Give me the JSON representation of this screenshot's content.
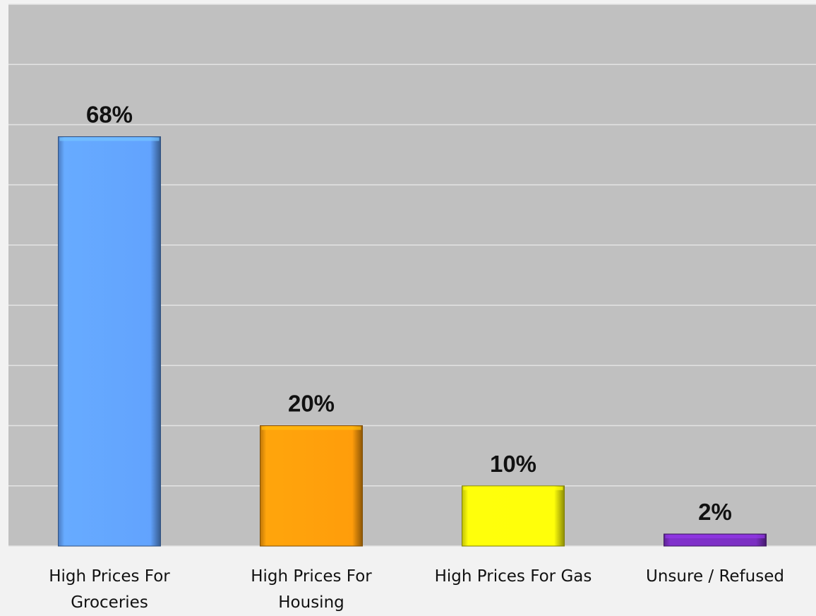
{
  "chart_data": {
    "type": "bar",
    "categories": [
      [
        "High Prices For",
        "Groceries"
      ],
      [
        "High Prices For",
        "Housing"
      ],
      [
        "High Prices For Gas"
      ],
      [
        "Unsure / Refused"
      ]
    ],
    "values": [
      68,
      20,
      10,
      2
    ],
    "data_labels": [
      "68%",
      "20%",
      "10%",
      "2%"
    ],
    "ylim": [
      0,
      90
    ],
    "grid": true,
    "legend": "none",
    "title": "",
    "xlabel": "",
    "ylabel": ""
  },
  "colors": {
    "plot_background": "#c0c0c0",
    "page_background": "#f2f2f2",
    "gridline": "#e4e4e4",
    "bars": [
      "#62a3fe",
      "#ff9d0b",
      "#ffff0a",
      "#7b2fc2"
    ]
  }
}
